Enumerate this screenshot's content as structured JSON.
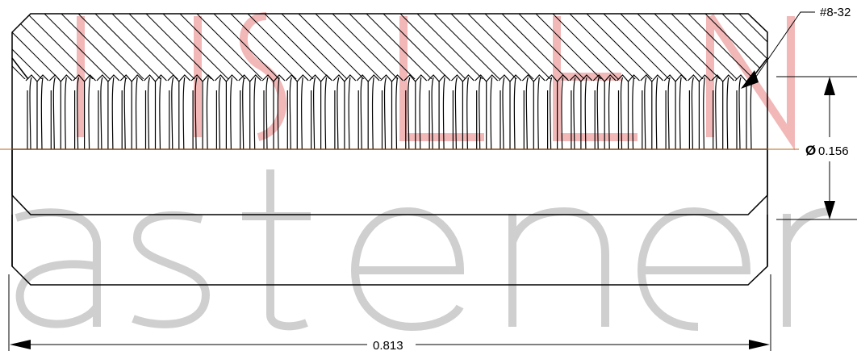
{
  "drawing": {
    "thread_callout": "#8-32",
    "diameter_symbol": "Ø",
    "diameter_value": "0.156",
    "length_value": "0.813"
  },
  "watermark": {
    "color_grey": "#cfcfcf",
    "color_red": "#f2b8b8"
  },
  "colors": {
    "line": "#000000",
    "centerline": "#b5651d"
  }
}
